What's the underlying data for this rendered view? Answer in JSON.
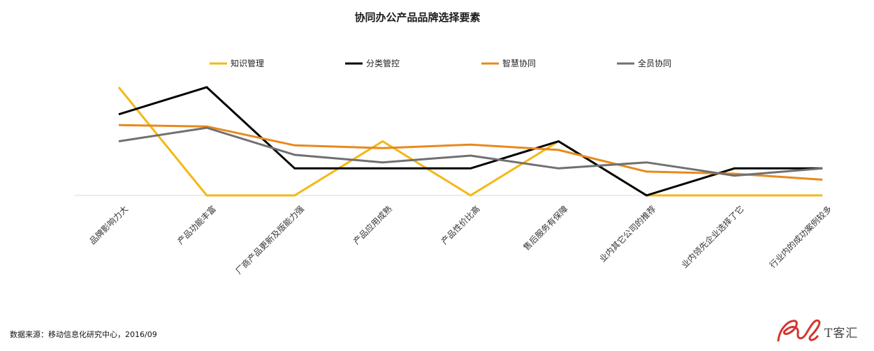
{
  "chart_data": {
    "type": "line",
    "title": "协同办公产品品牌选择要素",
    "categories": [
      "品牌影响力大",
      "产品功能丰富",
      "厂商产品更新及版能力强",
      "产品应用成熟",
      "产品性价比高",
      "售后服务有保障",
      "业内其它公司的推荐",
      "业内领先企业选择了它",
      "行业内的成功案例较多"
    ],
    "series": [
      {
        "name": "知识管理",
        "color": "#F5B715",
        "values": [
          4.0,
          0.0,
          0.0,
          2.0,
          0.0,
          2.0,
          0.0,
          0.0,
          0.0
        ]
      },
      {
        "name": "分类管控",
        "color": "#000000",
        "values": [
          3.0,
          4.0,
          1.0,
          1.0,
          1.0,
          2.0,
          0.0,
          1.0,
          1.0
        ]
      },
      {
        "name": "智慧协同",
        "color": "#E8891C",
        "values": [
          2.6,
          2.55,
          1.85,
          1.75,
          1.88,
          1.68,
          0.88,
          0.8,
          0.58
        ]
      },
      {
        "name": "全员协同",
        "color": "#707070",
        "values": [
          2.0,
          2.5,
          1.5,
          1.22,
          1.47,
          1.0,
          1.22,
          0.73,
          1.0
        ]
      }
    ],
    "ylim": [
      0,
      4
    ],
    "grid": false,
    "legend_position": "top",
    "yaxis_visible": false
  },
  "footer": {
    "source": "数据来源：移动信息化研究中心，2016/09",
    "brand": "T客汇"
  }
}
